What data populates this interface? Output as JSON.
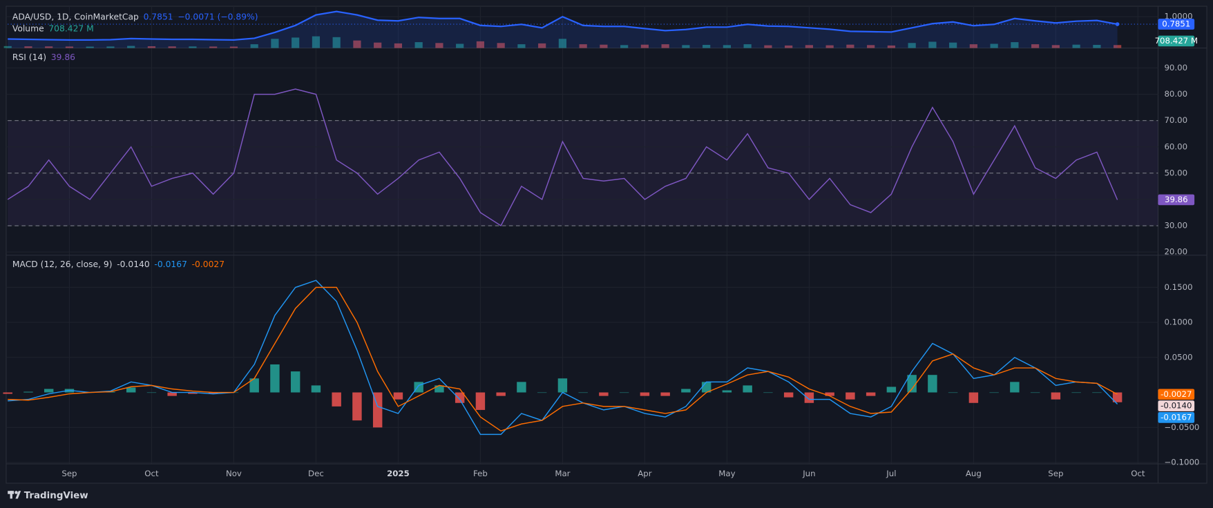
{
  "chart_data": [
    {
      "type": "line",
      "title": "ADA/USD, 1D, CoinMarketCap",
      "change": "−0.0071 (−0.89%)",
      "ylim": [
        0.1,
        1.3
      ],
      "yticks": [
        {
          "value": 1,
          "label": "1.0000"
        }
      ],
      "series": [
        {
          "color": "#2962ff",
          "values": [
            0.36,
            0.35,
            0.34,
            0.33,
            0.33,
            0.34,
            0.37,
            0.36,
            0.35,
            0.35,
            0.34,
            0.33,
            0.38,
            0.55,
            0.75,
            1.05,
            1.15,
            1.05,
            0.9,
            0.88,
            0.98,
            0.95,
            0.95,
            0.75,
            0.72,
            0.78,
            0.68,
            1.0,
            0.75,
            0.72,
            0.72,
            0.66,
            0.6,
            0.63,
            0.7,
            0.7,
            0.78,
            0.73,
            0.72,
            0.68,
            0.64,
            0.58,
            0.57,
            0.56,
            0.68,
            0.8,
            0.85,
            0.74,
            0.78,
            0.95,
            0.88,
            0.82,
            0.87,
            0.89,
            0.7851,
            null
          ]
        }
      ],
      "volume": {
        "name": "Volume",
        "last_label": "708.427 M",
        "color": "#26a69a",
        "up_color": "#26a69a",
        "down_color": "#ef5350",
        "ylim": [
          0,
          10000
        ],
        "values": [
          450,
          400,
          380,
          350,
          330,
          360,
          500,
          420,
          380,
          370,
          350,
          340,
          900,
          2200,
          2500,
          2800,
          2600,
          1800,
          1300,
          1100,
          1400,
          1200,
          1000,
          1600,
          1200,
          900,
          1100,
          2200,
          900,
          800,
          700,
          800,
          900,
          700,
          750,
          700,
          900,
          650,
          600,
          700,
          650,
          800,
          700,
          600,
          1200,
          1500,
          1300,
          900,
          1000,
          1400,
          900,
          700,
          800,
          750,
          708.427,
          null
        ]
      }
    },
    {
      "type": "line",
      "title": "RSI (14)",
      "ylim": [
        18.8,
        97.6
      ],
      "yticks": [
        {
          "value": 20,
          "label": "20.00"
        },
        {
          "value": 30,
          "label": "30.00"
        },
        {
          "value": 40,
          "label": "40.00"
        },
        {
          "value": 50,
          "label": "50.00"
        },
        {
          "value": 60,
          "label": "60.00"
        },
        {
          "value": 70,
          "label": "70.00"
        },
        {
          "value": 80,
          "label": "80.00"
        },
        {
          "value": 90,
          "label": "90.00"
        }
      ],
      "band": [
        30,
        70
      ],
      "levels": [
        30,
        50,
        70
      ],
      "series": [
        {
          "color": "#7e57c2",
          "values": [
            40,
            45,
            55,
            45,
            40,
            50,
            60,
            45,
            48,
            50,
            42,
            50,
            80,
            80,
            82,
            80,
            55,
            50,
            42,
            48,
            55,
            58,
            48,
            35,
            30,
            45,
            40,
            62,
            48,
            47,
            48,
            40,
            45,
            48,
            60,
            55,
            65,
            52,
            50,
            40,
            48,
            38,
            35,
            42,
            60,
            75,
            62,
            42,
            55,
            68,
            52,
            48,
            55,
            58,
            39.86,
            null
          ]
        }
      ]
    },
    {
      "type": "line",
      "title": "MACD (12, 26, close, 9)",
      "ylim": [
        -0.102,
        0.196
      ],
      "yticks": [
        {
          "value": -0.1,
          "label": "−0.1000"
        },
        {
          "value": -0.05,
          "label": "−0.0500"
        },
        {
          "value": 0.05,
          "label": "0.0500"
        },
        {
          "value": 0.1,
          "label": "0.1000"
        },
        {
          "value": 0.15,
          "label": "0.1500"
        }
      ],
      "up_color": "#26a69a",
      "down_color": "#ef5350",
      "series": [
        {
          "type": "bar",
          "color": "#f2d7d9",
          "last_label": "-0.0140",
          "values": [
            -0.002,
            0.001,
            0.005,
            0.005,
            0,
            0.001,
            0.007,
            0,
            -0.005,
            -0.002,
            -0.002,
            0,
            0.02,
            0.04,
            0.03,
            0.01,
            -0.02,
            -0.04,
            -0.05,
            -0.01,
            0.015,
            0.01,
            -0.015,
            -0.025,
            -0.005,
            0.015,
            0,
            0.02,
            0,
            -0.005,
            0,
            -0.005,
            -0.005,
            0.005,
            0.015,
            0.003,
            0.01,
            0,
            -0.007,
            -0.015,
            -0.005,
            -0.01,
            -0.005,
            0.008,
            0.025,
            0.025,
            0,
            -0.015,
            0,
            0.015,
            0,
            -0.01,
            0,
            0,
            -0.014,
            null
          ]
        },
        {
          "type": "line",
          "color": "#2196f3",
          "last_label": "-0.0167",
          "values": [
            -0.012,
            -0.01,
            -0.002,
            0.003,
            0,
            0.002,
            0.015,
            0.01,
            0,
            0,
            -0.002,
            0,
            0.04,
            0.11,
            0.15,
            0.16,
            0.13,
            0.06,
            -0.02,
            -0.03,
            0.01,
            0.02,
            -0.01,
            -0.06,
            -0.06,
            -0.03,
            -0.04,
            0,
            -0.015,
            -0.025,
            -0.02,
            -0.03,
            -0.035,
            -0.02,
            0.015,
            0.015,
            0.035,
            0.03,
            0.015,
            -0.01,
            -0.01,
            -0.03,
            -0.035,
            -0.02,
            0.03,
            0.07,
            0.055,
            0.02,
            0.025,
            0.05,
            0.035,
            0.01,
            0.015,
            0.013,
            -0.0167,
            null
          ]
        },
        {
          "type": "line",
          "color": "#ff6d00",
          "last_label": "-0.0027",
          "values": [
            -0.01,
            -0.011,
            -0.007,
            -0.002,
            0,
            0.001,
            0.008,
            0.01,
            0.005,
            0.002,
            0,
            0,
            0.02,
            0.07,
            0.12,
            0.15,
            0.15,
            0.1,
            0.03,
            -0.02,
            -0.005,
            0.01,
            0.005,
            -0.035,
            -0.055,
            -0.045,
            -0.04,
            -0.02,
            -0.015,
            -0.02,
            -0.02,
            -0.025,
            -0.03,
            -0.025,
            0,
            0.012,
            0.025,
            0.03,
            0.022,
            0.005,
            -0.005,
            -0.02,
            -0.03,
            -0.028,
            0.005,
            0.045,
            0.055,
            0.035,
            0.025,
            0.035,
            0.035,
            0.02,
            0.015,
            0.013,
            -0.0027,
            null
          ]
        }
      ],
      "categories": [
        null,
        null,
        null,
        "Sep",
        null,
        null,
        null,
        "Oct",
        null,
        null,
        null,
        "Nov",
        null,
        null,
        null,
        "Dec",
        null,
        null,
        null,
        "2025",
        null,
        null,
        null,
        "Feb",
        null,
        null,
        null,
        "Mar",
        null,
        null,
        null,
        "Apr",
        null,
        null,
        null,
        "May",
        null,
        null,
        null,
        "Jun",
        null,
        null,
        null,
        "Jul",
        null,
        null,
        null,
        "Aug",
        null,
        null,
        null,
        "Sep",
        null,
        null,
        null,
        "Oct"
      ]
    }
  ],
  "footer": {
    "brand": "TradingView"
  }
}
